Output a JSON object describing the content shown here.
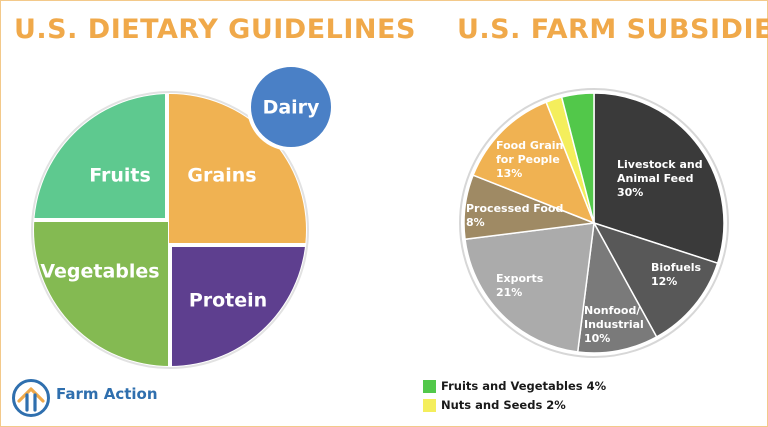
{
  "titles": {
    "left": "U.S. DIETARY GUIDELINES",
    "right": "U.S. FARM SUBSIDIES"
  },
  "brand": {
    "name": "Farm Action",
    "logo_icon": "farm-action-logo-icon"
  },
  "colors": {
    "title": "#f0a94a",
    "fruits": "#5ec98f",
    "grains": "#f0b252",
    "vegetables": "#84ba52",
    "protein": "#5e3f8f",
    "dairy": "#4a80c6",
    "brand": "#2f6fae"
  },
  "chart_data": [
    {
      "type": "pie",
      "title": "U.S. DIETARY GUIDELINES",
      "slices": [
        {
          "label": "Fruits",
          "color": "#5ec98f"
        },
        {
          "label": "Grains",
          "color": "#f0b252"
        },
        {
          "label": "Vegetables",
          "color": "#84ba52"
        },
        {
          "label": "Protein",
          "color": "#5e3f8f"
        }
      ],
      "extra": {
        "label": "Dairy",
        "color": "#4a80c6"
      }
    },
    {
      "type": "pie",
      "title": "U.S. FARM SUBSIDIES",
      "slices": [
        {
          "name": "Livestock and Animal Feed",
          "lines": [
            "Livestock and",
            "Animal Feed"
          ],
          "pct": "30%",
          "value": 30,
          "color": "#3a3a3a",
          "text_color": "#ffffff"
        },
        {
          "name": "Biofuels",
          "lines": [
            "Biofuels"
          ],
          "pct": "12%",
          "value": 12,
          "color": "#585858",
          "text_color": "#ffffff"
        },
        {
          "name": "Nonfood/ Industrial",
          "lines": [
            "Nonfood/",
            "Industrial"
          ],
          "pct": "10%",
          "value": 10,
          "color": "#7a7a7a",
          "text_color": "#ffffff"
        },
        {
          "name": "Exports",
          "lines": [
            "Exports"
          ],
          "pct": "21%",
          "value": 21,
          "color": "#ababab",
          "text_color": "#ffffff"
        },
        {
          "name": "Processed Food",
          "lines": [
            "Processed Food"
          ],
          "pct": "8%",
          "value": 8,
          "color": "#9f8a64",
          "text_color": "#ffffff"
        },
        {
          "name": "Food Grain for People",
          "lines": [
            "Food Grain",
            "for People"
          ],
          "pct": "13%",
          "value": 13,
          "color": "#f0b252",
          "text_color": "#ffffff"
        },
        {
          "name": "Nuts and Seeds",
          "lines": [],
          "pct": "2%",
          "value": 2,
          "color": "#f4ee5c",
          "text_color": "#1a1a1a"
        },
        {
          "name": "Fruits and Vegetables",
          "lines": [],
          "pct": "4%",
          "value": 4,
          "color": "#52c84a",
          "text_color": "#1a1a1a"
        }
      ],
      "legend": [
        {
          "label": "Fruits and Vegetables 4%",
          "color": "#52c84a"
        },
        {
          "label": "Nuts and Seeds 2%",
          "color": "#f4ee5c"
        }
      ]
    }
  ]
}
